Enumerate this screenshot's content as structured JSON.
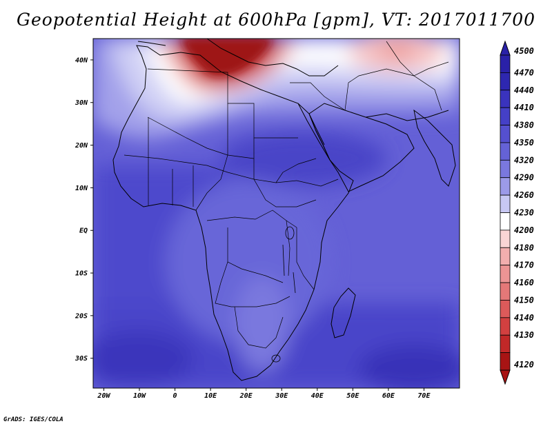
{
  "title": "Geopotential Height at 600hPa [gpm], VT: 2017011700",
  "credit": "GrADS: IGES/COLA",
  "map": {
    "lon_range": [
      -23,
      80
    ],
    "lat_range": [
      -37,
      45
    ],
    "lon_ticks": [
      {
        "value": -20,
        "label": "20W"
      },
      {
        "value": -10,
        "label": "10W"
      },
      {
        "value": 0,
        "label": "0"
      },
      {
        "value": 10,
        "label": "10E"
      },
      {
        "value": 20,
        "label": "20E"
      },
      {
        "value": 30,
        "label": "30E"
      },
      {
        "value": 40,
        "label": "40E"
      },
      {
        "value": 50,
        "label": "50E"
      },
      {
        "value": 60,
        "label": "60E"
      },
      {
        "value": 70,
        "label": "70E"
      }
    ],
    "lat_ticks": [
      {
        "value": 40,
        "label": "40N"
      },
      {
        "value": 30,
        "label": "30N"
      },
      {
        "value": 20,
        "label": "20N"
      },
      {
        "value": 10,
        "label": "10N"
      },
      {
        "value": 0,
        "label": "EQ"
      },
      {
        "value": -10,
        "label": "10S"
      },
      {
        "value": -20,
        "label": "20S"
      },
      {
        "value": -30,
        "label": "30S"
      }
    ]
  },
  "colorbar": {
    "levels": [
      {
        "label": "4500",
        "color": "#2a21a8"
      },
      {
        "label": "4470",
        "color": "#2e27b0"
      },
      {
        "label": "4440",
        "color": "#3a33bd"
      },
      {
        "label": "4410",
        "color": "#4540c7"
      },
      {
        "label": "4380",
        "color": "#5550cf"
      },
      {
        "label": "4350",
        "color": "#6562d6"
      },
      {
        "label": "4320",
        "color": "#7a78de"
      },
      {
        "label": "4290",
        "color": "#9c9ae8"
      },
      {
        "label": "4260",
        "color": "#c8c8f3"
      },
      {
        "label": "4230",
        "color": "#ffffff"
      },
      {
        "label": "4200",
        "color": "#f9d5d5"
      },
      {
        "label": "4180",
        "color": "#f2aeae"
      },
      {
        "label": "4170",
        "color": "#ec9494"
      },
      {
        "label": "4160",
        "color": "#e47878"
      },
      {
        "label": "4150",
        "color": "#dc5a5a"
      },
      {
        "label": "4140",
        "color": "#d24040"
      },
      {
        "label": "4130",
        "color": "#c12828"
      },
      {
        "label": "4120",
        "color": "#a81414"
      }
    ]
  }
}
